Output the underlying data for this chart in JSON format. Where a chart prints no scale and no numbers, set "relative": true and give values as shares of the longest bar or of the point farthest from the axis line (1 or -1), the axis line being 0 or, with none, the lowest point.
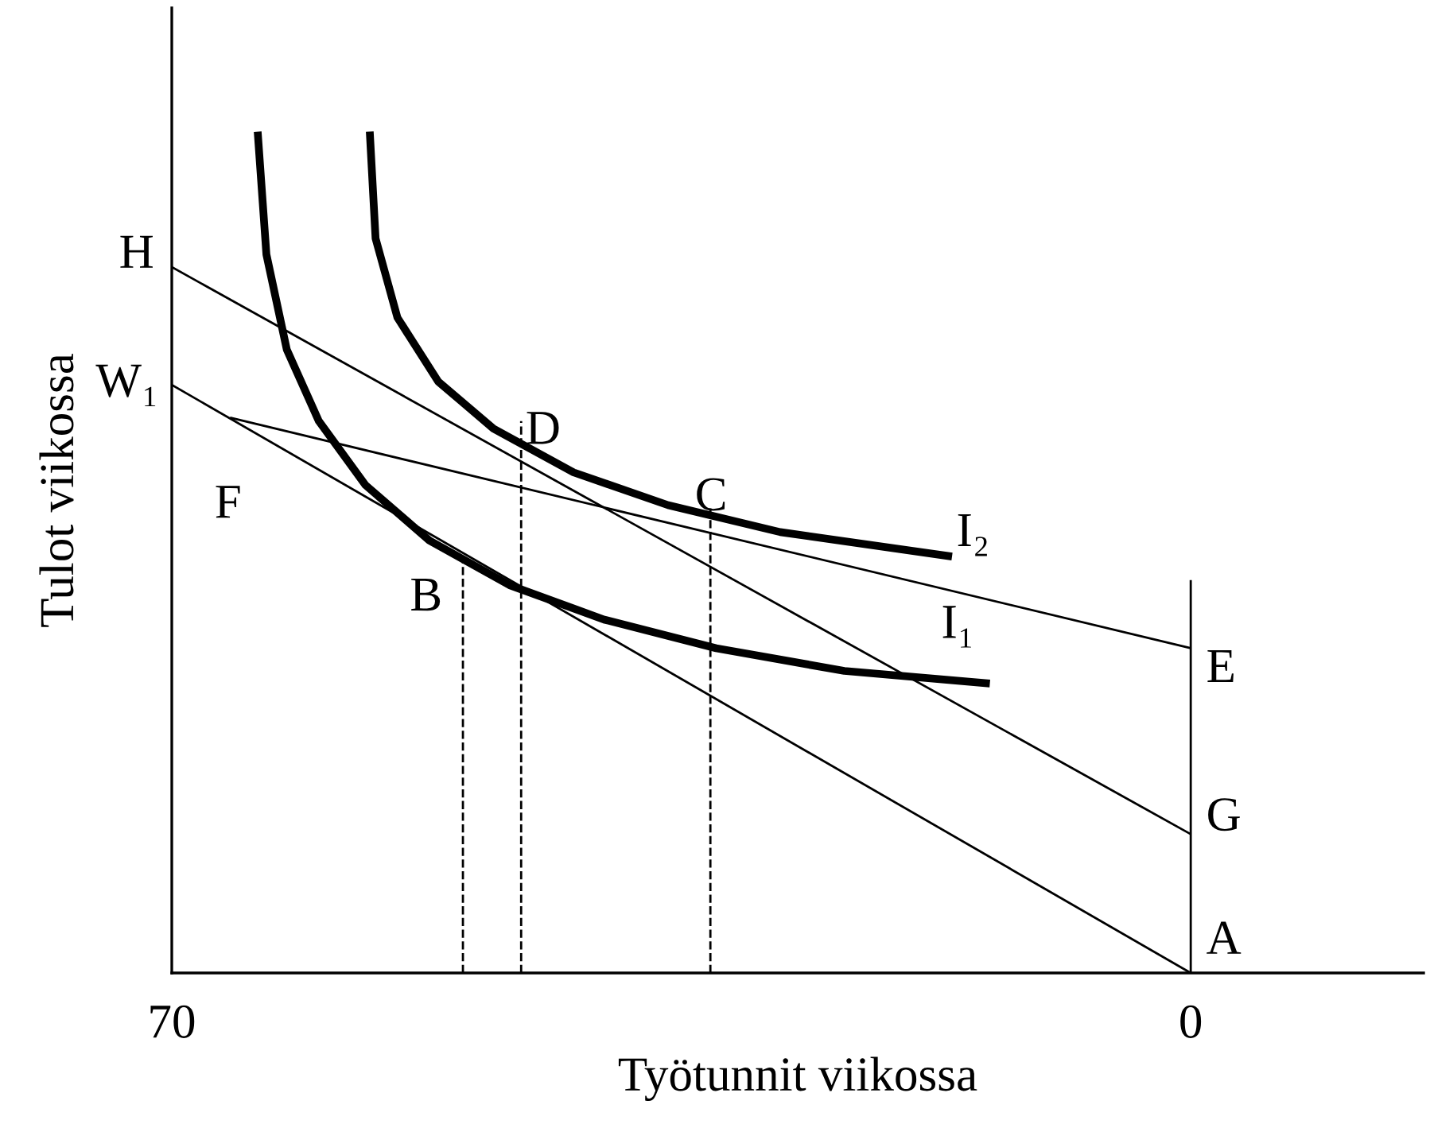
{
  "chart_data": {
    "type": "line",
    "relative": true,
    "xlabel": "Työtunnit viikossa",
    "ylabel": "Tulot viikossa",
    "xlim": [
      70,
      -16
    ],
    "xticks": [
      70,
      0
    ],
    "tick_labels": "x",
    "grid": false,
    "legend": false,
    "marker": "none",
    "series": [
      {
        "color": "#000000",
        "x": [
          70,
          0
        ],
        "values": [
          0.839,
          0.165
        ]
      },
      {
        "color": "#000000",
        "x": [
          70,
          0
        ],
        "values": [
          0.699,
          0
        ]
      },
      {
        "color": "#000000",
        "x": [
          66,
          0
        ],
        "values": [
          0.66,
          0.386
        ]
      },
      {
        "color": "#000000",
        "x": [
          0,
          0
        ],
        "values": [
          0,
          0.467
        ]
      },
      {
        "color": "#000000",
        "x": [
          50,
          50
        ],
        "values": [
          0,
          0.492
        ],
        "line_style": "dashed"
      },
      {
        "color": "#000000",
        "x": [
          46,
          46
        ],
        "values": [
          0,
          0.656
        ],
        "line_style": "dashed"
      },
      {
        "color": "#000000",
        "x": [
          33,
          33
        ],
        "values": [
          0,
          0.556
        ],
        "line_style": "dashed"
      },
      {
        "color": "#000000",
        "x": [
          64.1,
          63.5,
          62.1,
          59.9,
          56.7,
          52.3,
          46.8,
          40.3,
          32.6,
          23.8,
          13.8
        ],
        "values": [
          1,
          0.854,
          0.741,
          0.656,
          0.58,
          0.514,
          0.461,
          0.42,
          0.386,
          0.359,
          0.344
        ]
      },
      {
        "color": "#000000",
        "x": [
          56.4,
          56.0,
          54.5,
          51.7,
          47.9,
          42.4,
          35.9,
          28.2,
          16.4
        ],
        "values": [
          1,
          0.873,
          0.779,
          0.703,
          0.647,
          0.595,
          0.556,
          0.524,
          0.495
        ]
      }
    ],
    "annotations": [
      {
        "text": "H",
        "x": 70,
        "y": 0.839
      },
      {
        "text": "W₁",
        "x": 70,
        "y": 0.699
      },
      {
        "text": "F",
        "x": 66,
        "y": 0.66
      },
      {
        "text": "D",
        "x": 46,
        "y": 0.656
      },
      {
        "text": "C",
        "x": 33,
        "y": 0.556
      },
      {
        "text": "B",
        "x": 50,
        "y": 0.492
      },
      {
        "text": "I₂",
        "x": 16.4,
        "y": 0.495
      },
      {
        "text": "I₁",
        "x": 13.8,
        "y": 0.344
      },
      {
        "text": "E",
        "x": 0,
        "y": 0.386
      },
      {
        "text": "G",
        "x": 0,
        "y": 0.165
      },
      {
        "text": "A",
        "x": 0,
        "y": 0
      }
    ]
  }
}
